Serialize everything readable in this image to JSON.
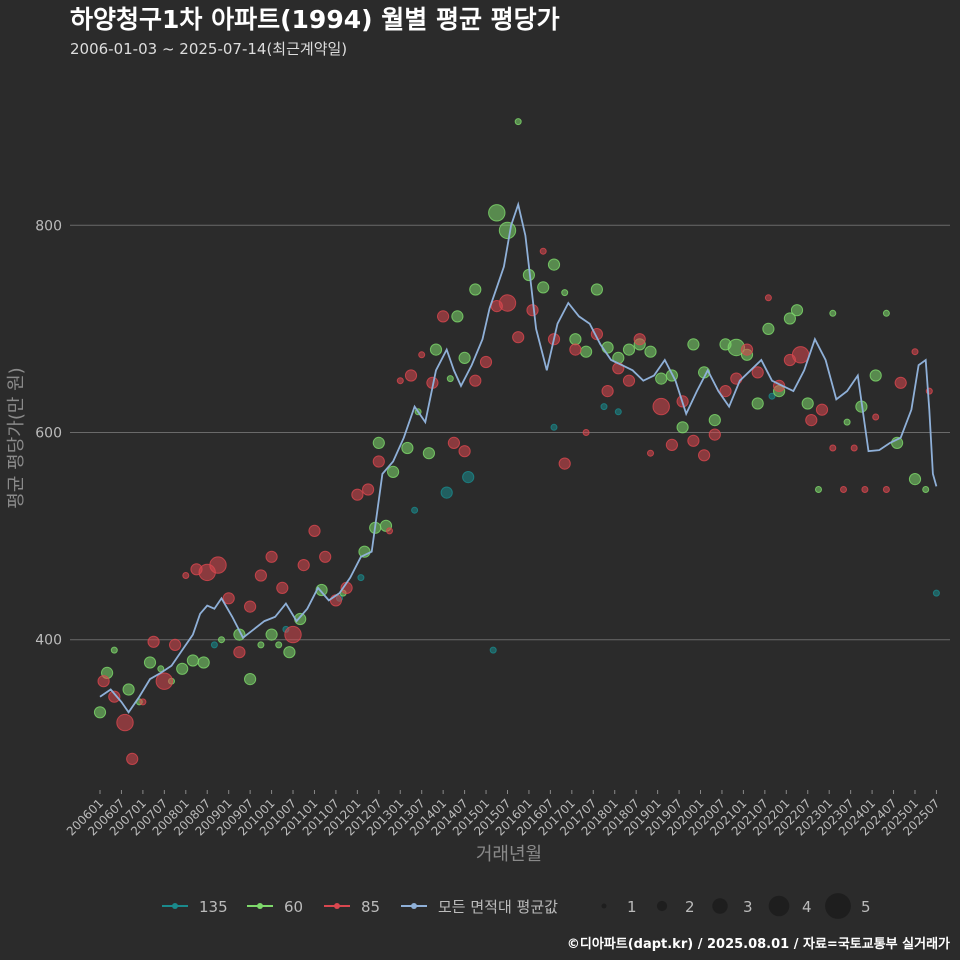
{
  "chart_data": {
    "type": "scatter",
    "title": "하양청구1차 아파트(1994) 월별 평균 평당가",
    "subtitle": "2006-01-03 ~ 2025-07-14(최근계약일)",
    "xlabel": "거래년월",
    "ylabel": "평균 평당가(만 원)",
    "caption": "©디아파트(dapt.kr) / 2025.08.01 / 자료=국토교통부 실거래가",
    "ylim": [
      255,
      945
    ],
    "yticks": [
      400,
      600,
      800
    ],
    "grid": true,
    "x_range": [
      "2006-01",
      "2025-08"
    ],
    "x_tick_labels": [
      "200601",
      "200607",
      "200701",
      "200707",
      "200801",
      "200807",
      "200901",
      "200907",
      "201001",
      "201007",
      "201101",
      "201107",
      "201201",
      "201207",
      "201301",
      "201307",
      "201401",
      "201407",
      "201501",
      "201507",
      "201601",
      "201607",
      "201701",
      "201707",
      "201801",
      "201807",
      "201901",
      "201907",
      "202001",
      "202007",
      "202101",
      "202107",
      "202201",
      "202207",
      "202301",
      "202307",
      "202401",
      "202407",
      "202501",
      "202507"
    ],
    "colors": {
      "135": "#1a8a8c",
      "60": "#7ed96b",
      "85": "#d9474f",
      "avg": "#8fb0d8"
    },
    "legend": {
      "position": "bottom",
      "series": [
        {
          "key": "135",
          "label": "135"
        },
        {
          "key": "60",
          "label": "60"
        },
        {
          "key": "85",
          "label": "85"
        },
        {
          "key": "avg",
          "label": "모든 면적대 평균값"
        }
      ],
      "sizes": [
        1,
        2,
        3,
        4,
        5
      ]
    },
    "average_line": {
      "name": "모든 면적대 평균값",
      "points": [
        [
          "2006-01",
          345
        ],
        [
          "2006-04",
          352
        ],
        [
          "2006-07",
          340
        ],
        [
          "2006-09",
          330
        ],
        [
          "2006-12",
          345
        ],
        [
          "2007-03",
          362
        ],
        [
          "2007-06",
          368
        ],
        [
          "2007-09",
          375
        ],
        [
          "2007-12",
          390
        ],
        [
          "2008-03",
          405
        ],
        [
          "2008-05",
          425
        ],
        [
          "2008-07",
          433
        ],
        [
          "2008-09",
          430
        ],
        [
          "2008-11",
          440
        ],
        [
          "2009-02",
          422
        ],
        [
          "2009-05",
          402
        ],
        [
          "2009-08",
          410
        ],
        [
          "2009-11",
          418
        ],
        [
          "2010-02",
          422
        ],
        [
          "2010-05",
          435
        ],
        [
          "2010-08",
          418
        ],
        [
          "2010-11",
          430
        ],
        [
          "2011-02",
          450
        ],
        [
          "2011-05",
          438
        ],
        [
          "2011-08",
          445
        ],
        [
          "2011-11",
          460
        ],
        [
          "2012-02",
          480
        ],
        [
          "2012-05",
          485
        ],
        [
          "2012-08",
          560
        ],
        [
          "2012-11",
          572
        ],
        [
          "2013-02",
          595
        ],
        [
          "2013-05",
          625
        ],
        [
          "2013-08",
          610
        ],
        [
          "2013-11",
          660
        ],
        [
          "2014-02",
          680
        ],
        [
          "2014-04",
          660
        ],
        [
          "2014-06",
          645
        ],
        [
          "2014-09",
          665
        ],
        [
          "2014-12",
          690
        ],
        [
          "2015-02",
          720
        ],
        [
          "2015-04",
          740
        ],
        [
          "2015-06",
          760
        ],
        [
          "2015-08",
          800
        ],
        [
          "2015-10",
          820
        ],
        [
          "2015-12",
          790
        ],
        [
          "2016-03",
          700
        ],
        [
          "2016-06",
          660
        ],
        [
          "2016-09",
          705
        ],
        [
          "2016-12",
          725
        ],
        [
          "2017-03",
          712
        ],
        [
          "2017-06",
          705
        ],
        [
          "2017-09",
          685
        ],
        [
          "2017-12",
          670
        ],
        [
          "2018-03",
          665
        ],
        [
          "2018-06",
          660
        ],
        [
          "2018-09",
          650
        ],
        [
          "2018-12",
          655
        ],
        [
          "2019-03",
          670
        ],
        [
          "2019-06",
          650
        ],
        [
          "2019-09",
          618
        ],
        [
          "2019-12",
          640
        ],
        [
          "2020-03",
          660
        ],
        [
          "2020-06",
          640
        ],
        [
          "2020-09",
          625
        ],
        [
          "2020-12",
          650
        ],
        [
          "2021-03",
          660
        ],
        [
          "2021-06",
          670
        ],
        [
          "2021-09",
          650
        ],
        [
          "2021-12",
          645
        ],
        [
          "2022-03",
          640
        ],
        [
          "2022-06",
          660
        ],
        [
          "2022-09",
          690
        ],
        [
          "2022-12",
          670
        ],
        [
          "2023-03",
          632
        ],
        [
          "2023-06",
          640
        ],
        [
          "2023-09",
          655
        ],
        [
          "2023-12",
          582
        ],
        [
          "2024-03",
          583
        ],
        [
          "2024-06",
          590
        ],
        [
          "2024-09",
          595
        ],
        [
          "2024-12",
          622
        ],
        [
          "2025-02",
          665
        ],
        [
          "2025-04",
          670
        ],
        [
          "2025-05",
          622
        ],
        [
          "2025-06",
          560
        ],
        [
          "2025-07",
          548
        ]
      ]
    },
    "series": [
      {
        "name": "135",
        "points": [
          [
            "2008-09",
            395,
            1
          ],
          [
            "2010-05",
            410,
            1
          ],
          [
            "2011-08",
            440,
            1
          ],
          [
            "2012-02",
            460,
            1
          ],
          [
            "2014-02",
            542,
            2
          ],
          [
            "2014-08",
            557,
            2
          ],
          [
            "2015-03",
            390,
            1
          ],
          [
            "2016-08",
            605,
            1
          ],
          [
            "2017-10",
            625,
            1
          ],
          [
            "2025-07",
            445,
            1
          ],
          [
            "2013-05",
            525,
            1
          ],
          [
            "2018-02",
            620,
            1
          ],
          [
            "2021-09",
            635,
            1
          ]
        ]
      },
      {
        "name": "60",
        "points": [
          [
            "2006-01",
            330,
            2
          ],
          [
            "2006-03",
            368,
            2
          ],
          [
            "2006-05",
            390,
            1
          ],
          [
            "2006-09",
            352,
            2
          ],
          [
            "2006-12",
            340,
            1
          ],
          [
            "2007-03",
            378,
            2
          ],
          [
            "2007-06",
            372,
            1
          ],
          [
            "2007-09",
            360,
            1
          ],
          [
            "2007-12",
            372,
            2
          ],
          [
            "2008-03",
            380,
            2
          ],
          [
            "2008-06",
            378,
            2
          ],
          [
            "2008-11",
            400,
            1
          ],
          [
            "2009-04",
            405,
            2
          ],
          [
            "2009-07",
            362,
            2
          ],
          [
            "2009-10",
            395,
            1
          ],
          [
            "2010-01",
            405,
            2
          ],
          [
            "2010-03",
            395,
            1
          ],
          [
            "2010-06",
            388,
            2
          ],
          [
            "2010-09",
            420,
            2
          ],
          [
            "2011-03",
            448,
            2
          ],
          [
            "2011-09",
            445,
            1
          ],
          [
            "2012-03",
            485,
            2
          ],
          [
            "2012-06",
            508,
            2
          ],
          [
            "2012-07",
            590,
            2
          ],
          [
            "2012-09",
            510,
            2
          ],
          [
            "2012-11",
            562,
            2
          ],
          [
            "2013-03",
            585,
            2
          ],
          [
            "2013-06",
            620,
            1
          ],
          [
            "2013-09",
            580,
            2
          ],
          [
            "2013-11",
            680,
            2
          ],
          [
            "2014-03",
            652,
            1
          ],
          [
            "2014-05",
            712,
            2
          ],
          [
            "2014-07",
            672,
            2
          ],
          [
            "2014-10",
            738,
            2
          ],
          [
            "2015-04",
            812,
            3
          ],
          [
            "2015-07",
            795,
            3
          ],
          [
            "2015-10",
            900,
            1
          ],
          [
            "2016-01",
            752,
            2
          ],
          [
            "2016-05",
            740,
            2
          ],
          [
            "2016-08",
            762,
            2
          ],
          [
            "2016-11",
            735,
            1
          ],
          [
            "2017-02",
            690,
            2
          ],
          [
            "2017-05",
            678,
            2
          ],
          [
            "2017-08",
            738,
            2
          ],
          [
            "2017-11",
            682,
            2
          ],
          [
            "2018-02",
            672,
            2
          ],
          [
            "2018-05",
            680,
            2
          ],
          [
            "2018-08",
            685,
            2
          ],
          [
            "2018-11",
            678,
            2
          ],
          [
            "2019-02",
            652,
            2
          ],
          [
            "2019-05",
            655,
            2
          ],
          [
            "2019-08",
            605,
            2
          ],
          [
            "2019-11",
            685,
            2
          ],
          [
            "2020-02",
            658,
            2
          ],
          [
            "2020-05",
            612,
            2
          ],
          [
            "2020-08",
            685,
            2
          ],
          [
            "2020-11",
            682,
            3
          ],
          [
            "2021-02",
            675,
            2
          ],
          [
            "2021-05",
            628,
            2
          ],
          [
            "2021-08",
            700,
            2
          ],
          [
            "2021-11",
            640,
            2
          ],
          [
            "2022-02",
            710,
            2
          ],
          [
            "2022-04",
            718,
            2
          ],
          [
            "2022-07",
            628,
            2
          ],
          [
            "2022-10",
            545,
            1
          ],
          [
            "2023-02",
            715,
            1
          ],
          [
            "2023-06",
            610,
            1
          ],
          [
            "2023-10",
            625,
            2
          ],
          [
            "2024-02",
            655,
            2
          ],
          [
            "2024-05",
            715,
            1
          ],
          [
            "2024-08",
            590,
            2
          ],
          [
            "2025-01",
            555,
            2
          ],
          [
            "2025-04",
            545,
            1
          ]
        ]
      },
      {
        "name": "85",
        "points": [
          [
            "2006-02",
            360,
            2
          ],
          [
            "2006-05",
            345,
            2
          ],
          [
            "2006-08",
            320,
            3
          ],
          [
            "2006-10",
            285,
            2
          ],
          [
            "2007-01",
            340,
            1
          ],
          [
            "2007-04",
            398,
            2
          ],
          [
            "2007-07",
            360,
            3
          ],
          [
            "2007-10",
            395,
            2
          ],
          [
            "2008-01",
            462,
            1
          ],
          [
            "2008-04",
            468,
            2
          ],
          [
            "2008-07",
            465,
            3
          ],
          [
            "2008-10",
            472,
            3
          ],
          [
            "2009-01",
            440,
            2
          ],
          [
            "2009-04",
            388,
            2
          ],
          [
            "2009-07",
            432,
            2
          ],
          [
            "2009-10",
            462,
            2
          ],
          [
            "2010-01",
            480,
            2
          ],
          [
            "2010-04",
            450,
            2
          ],
          [
            "2010-07",
            405,
            3
          ],
          [
            "2010-10",
            472,
            2
          ],
          [
            "2011-01",
            505,
            2
          ],
          [
            "2011-04",
            480,
            2
          ],
          [
            "2011-07",
            438,
            2
          ],
          [
            "2011-10",
            450,
            2
          ],
          [
            "2012-01",
            540,
            2
          ],
          [
            "2012-04",
            545,
            2
          ],
          [
            "2012-07",
            572,
            2
          ],
          [
            "2012-10",
            505,
            1
          ],
          [
            "2013-01",
            650,
            1
          ],
          [
            "2013-04",
            655,
            2
          ],
          [
            "2013-07",
            675,
            1
          ],
          [
            "2013-10",
            648,
            2
          ],
          [
            "2014-01",
            712,
            2
          ],
          [
            "2014-04",
            590,
            2
          ],
          [
            "2014-07",
            582,
            2
          ],
          [
            "2014-10",
            650,
            2
          ],
          [
            "2015-01",
            668,
            2
          ],
          [
            "2015-04",
            722,
            2
          ],
          [
            "2015-07",
            725,
            3
          ],
          [
            "2015-10",
            692,
            2
          ],
          [
            "2016-02",
            718,
            2
          ],
          [
            "2016-05",
            775,
            1
          ],
          [
            "2016-08",
            690,
            2
          ],
          [
            "2016-11",
            570,
            2
          ],
          [
            "2017-02",
            680,
            2
          ],
          [
            "2017-05",
            600,
            1
          ],
          [
            "2017-08",
            695,
            2
          ],
          [
            "2017-11",
            640,
            2
          ],
          [
            "2018-02",
            662,
            2
          ],
          [
            "2018-05",
            650,
            2
          ],
          [
            "2018-08",
            690,
            2
          ],
          [
            "2018-11",
            580,
            1
          ],
          [
            "2019-02",
            625,
            3
          ],
          [
            "2019-05",
            588,
            2
          ],
          [
            "2019-08",
            630,
            2
          ],
          [
            "2019-11",
            592,
            2
          ],
          [
            "2020-02",
            578,
            2
          ],
          [
            "2020-05",
            598,
            2
          ],
          [
            "2020-08",
            640,
            2
          ],
          [
            "2020-11",
            652,
            2
          ],
          [
            "2021-02",
            680,
            2
          ],
          [
            "2021-05",
            658,
            2
          ],
          [
            "2021-08",
            730,
            1
          ],
          [
            "2021-11",
            645,
            2
          ],
          [
            "2022-02",
            670,
            2
          ],
          [
            "2022-05",
            675,
            3
          ],
          [
            "2022-08",
            612,
            2
          ],
          [
            "2022-11",
            622,
            2
          ],
          [
            "2023-02",
            585,
            1
          ],
          [
            "2023-05",
            545,
            1
          ],
          [
            "2023-08",
            585,
            1
          ],
          [
            "2023-11",
            545,
            1
          ],
          [
            "2024-02",
            615,
            1
          ],
          [
            "2024-05",
            545,
            1
          ],
          [
            "2024-09",
            648,
            2
          ],
          [
            "2025-01",
            678,
            1
          ],
          [
            "2025-05",
            640,
            1
          ]
        ]
      }
    ]
  }
}
